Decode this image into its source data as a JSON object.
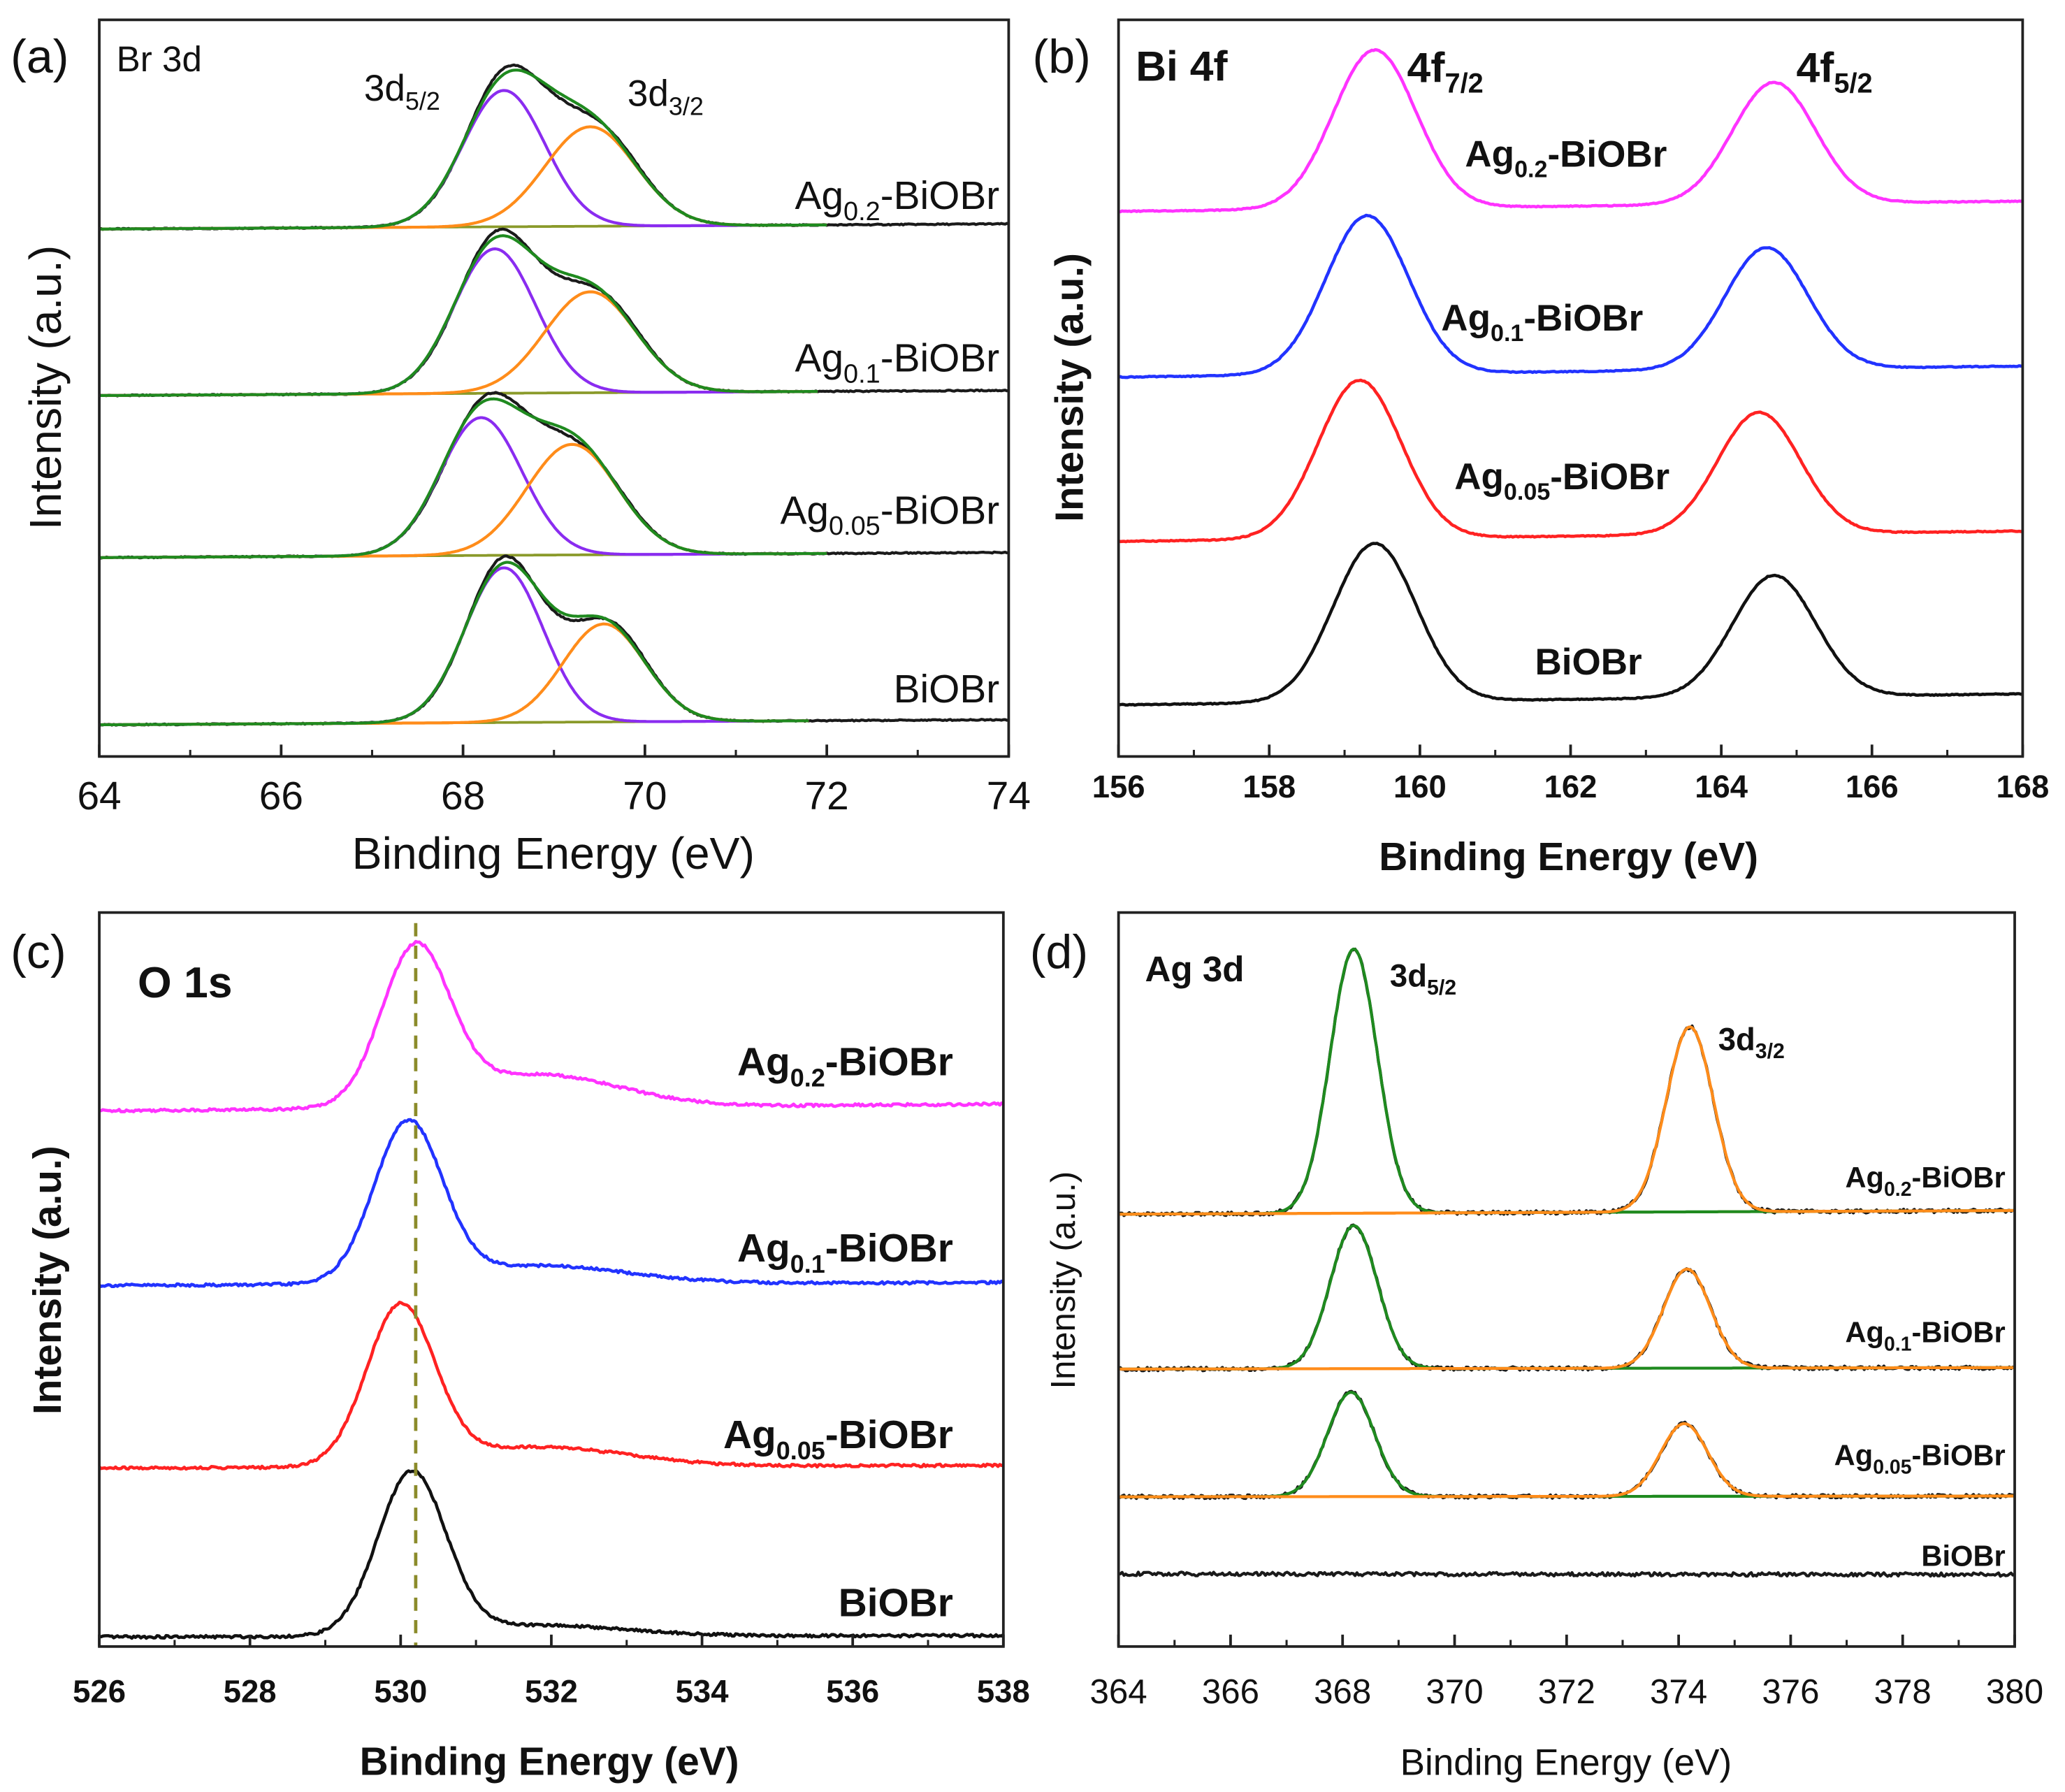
{
  "chart_data": [
    {
      "panel": "(a)",
      "type": "line",
      "title": "Br 3d",
      "xlabel": "Binding Energy (eV)",
      "ylabel": "Intensity (a.u.)",
      "xlim": [
        64,
        74
      ],
      "ylim": [
        0,
        100
      ],
      "xticks": [
        64,
        66,
        68,
        70,
        72,
        74
      ],
      "xtick_labels": [
        "64",
        "66",
        "68",
        "70",
        "72",
        "74"
      ],
      "peak_labels": [
        {
          "main": "3d",
          "sub": "5/2"
        },
        {
          "main": "3d",
          "sub": "3/2"
        }
      ],
      "colors": {
        "data": "#1a1a1a",
        "envelope": "#1f8a1f",
        "background": "#8a9a2a",
        "comp1": "#8a2cf0",
        "comp2": "#ff8c1a"
      },
      "series": [
        {
          "name": "Ag0.2-BiOBr",
          "label": {
            "main": "Ag",
            "sub": "0.2",
            "suffix": "-BiOBr"
          },
          "baseline": [
            71.6,
            72.3
          ],
          "fit_range": [
            64,
            72
          ],
          "components": [
            {
              "center": 68.45,
              "amplitude": 18.5,
              "sigma": 0.45
            },
            {
              "center": 69.4,
              "amplitude": 13.5,
              "sigma": 0.5
            }
          ]
        },
        {
          "name": "Ag0.1-BiOBr",
          "label": {
            "main": "Ag",
            "sub": "0.1",
            "suffix": "-BiOBr"
          },
          "baseline": [
            49.0,
            49.7
          ],
          "fit_range": [
            64,
            71.9
          ],
          "components": [
            {
              "center": 68.35,
              "amplitude": 19.6,
              "sigma": 0.45
            },
            {
              "center": 69.4,
              "amplitude": 13.7,
              "sigma": 0.5
            }
          ]
        },
        {
          "name": "Ag0.05-BiOBr",
          "label": {
            "main": "Ag",
            "sub": "0.05",
            "suffix": "-BiOBr"
          },
          "baseline": [
            27.0,
            27.7
          ],
          "fit_range": [
            64,
            72
          ],
          "components": [
            {
              "center": 68.2,
              "amplitude": 18.7,
              "sigma": 0.45
            },
            {
              "center": 69.2,
              "amplitude": 15.0,
              "sigma": 0.5
            }
          ]
        },
        {
          "name": "BiOBr",
          "label": {
            "main": "BiOBr",
            "sub": "",
            "suffix": ""
          },
          "baseline": [
            4.3,
            5.0
          ],
          "fit_range": [
            64,
            71.8
          ],
          "components": [
            {
              "center": 68.45,
              "amplitude": 21.0,
              "sigma": 0.43
            },
            {
              "center": 69.55,
              "amplitude": 13.3,
              "sigma": 0.45
            }
          ]
        }
      ]
    },
    {
      "panel": "(b)",
      "type": "line",
      "title": "Bi 4f",
      "xlabel": "Binding Energy (eV)",
      "ylabel": "Intensity (a.u.)",
      "xlim": [
        156,
        168
      ],
      "ylim": [
        0,
        100
      ],
      "xticks": [
        156,
        158,
        160,
        162,
        164,
        166,
        168
      ],
      "xtick_labels": [
        "156",
        "158",
        "160",
        "162",
        "164",
        "166",
        "168"
      ],
      "peak_labels": [
        {
          "main": "4f",
          "sub": "7/2"
        },
        {
          "main": "4f",
          "sub": "5/2"
        }
      ],
      "series": [
        {
          "name": "Ag0.2-BiOBr",
          "color": "#ff33ff",
          "label": {
            "main": "Ag",
            "sub": "0.2",
            "suffix": "-BiOBr"
          },
          "baseline": [
            74.0,
            75.4
          ],
          "components": [
            {
              "center": 159.4,
              "amplitude": 21.5,
              "sigma": 0.55
            },
            {
              "center": 164.7,
              "amplitude": 16.5,
              "sigma": 0.55
            }
          ]
        },
        {
          "name": "Ag0.1-BiOBr",
          "color": "#2233ff",
          "label": {
            "main": "Ag",
            "sub": "0.1",
            "suffix": "-BiOBr"
          },
          "baseline": [
            51.5,
            53.0
          ],
          "components": [
            {
              "center": 159.3,
              "amplitude": 21.5,
              "sigma": 0.55
            },
            {
              "center": 164.6,
              "amplitude": 16.5,
              "sigma": 0.55
            }
          ]
        },
        {
          "name": "Ag0.05-BiOBr",
          "color": "#ff2222",
          "label": {
            "main": "Ag",
            "sub": "0.05",
            "suffix": "-BiOBr"
          },
          "baseline": [
            29.2,
            30.6
          ],
          "components": [
            {
              "center": 159.2,
              "amplitude": 21.5,
              "sigma": 0.55
            },
            {
              "center": 164.5,
              "amplitude": 16.5,
              "sigma": 0.55
            }
          ]
        },
        {
          "name": "BiOBr",
          "color": "#111111",
          "label": {
            "main": "BiOBr",
            "sub": "",
            "suffix": ""
          },
          "baseline": [
            7.0,
            8.5
          ],
          "components": [
            {
              "center": 159.4,
              "amplitude": 21.5,
              "sigma": 0.55
            },
            {
              "center": 164.7,
              "amplitude": 16.5,
              "sigma": 0.55
            }
          ]
        }
      ]
    },
    {
      "panel": "(c)",
      "type": "line",
      "title": "O 1s",
      "xlabel": "Binding Energy (eV)",
      "ylabel": "Intensity (a.u.)",
      "xlim": [
        526,
        538
      ],
      "ylim": [
        0,
        100
      ],
      "xticks": [
        526,
        528,
        530,
        532,
        534,
        536,
        538
      ],
      "xtick_labels": [
        "526",
        "528",
        "530",
        "532",
        "534",
        "536",
        "538"
      ],
      "reference_line": {
        "x": 530.2,
        "color": "#8b8b2a",
        "style": "dashed"
      },
      "series": [
        {
          "name": "Ag0.2-BiOBr",
          "color": "#ff33ff",
          "label": {
            "main": "Ag",
            "sub": "0.2",
            "suffix": "-BiOBr"
          },
          "baseline": [
            73.0,
            73.9
          ],
          "components": [
            {
              "center": 530.2,
              "amplitude": 21.0,
              "sigma": 0.45
            },
            {
              "center": 531.8,
              "amplitude": 4.5,
              "sigma": 1.1
            }
          ]
        },
        {
          "name": "Ag0.1-BiOBr",
          "color": "#2233ff",
          "label": {
            "main": "Ag",
            "sub": "0.1",
            "suffix": "-BiOBr"
          },
          "baseline": [
            49.2,
            49.6
          ],
          "components": [
            {
              "center": 530.1,
              "amplitude": 21.5,
              "sigma": 0.45
            },
            {
              "center": 531.8,
              "amplitude": 2.5,
              "sigma": 1.2
            }
          ]
        },
        {
          "name": "Ag0.05-BiOBr",
          "color": "#ff2222",
          "label": {
            "main": "Ag",
            "sub": "0.05",
            "suffix": "-BiOBr"
          },
          "baseline": [
            24.3,
            24.7
          ],
          "components": [
            {
              "center": 530.0,
              "amplitude": 21.5,
              "sigma": 0.45
            },
            {
              "center": 531.8,
              "amplitude": 2.7,
              "sigma": 1.2
            }
          ]
        },
        {
          "name": "BiOBr",
          "color": "#111111",
          "label": {
            "main": "BiOBr",
            "sub": "",
            "suffix": ""
          },
          "baseline": [
            1.3,
            1.5
          ],
          "components": [
            {
              "center": 530.15,
              "amplitude": 22.0,
              "sigma": 0.45
            },
            {
              "center": 531.8,
              "amplitude": 1.5,
              "sigma": 1.2
            }
          ]
        }
      ]
    },
    {
      "panel": "(d)",
      "type": "line",
      "title": "Ag 3d",
      "xlabel": "Binding Energy (eV)",
      "ylabel": "Intensity (a.u.)",
      "xlim": [
        364,
        380
      ],
      "ylim": [
        0,
        100
      ],
      "xticks": [
        364,
        366,
        368,
        370,
        372,
        374,
        376,
        378,
        380
      ],
      "xtick_labels": [
        "364",
        "366",
        "368",
        "370",
        "372",
        "374",
        "376",
        "378",
        "380"
      ],
      "peak_labels": [
        {
          "main": "3d",
          "sub": "5/2"
        },
        {
          "main": "3d",
          "sub": "3/2"
        }
      ],
      "colors": {
        "data": "#1a1a1a",
        "comp1": "#1f8a1f",
        "comp2": "#ff8c1a"
      },
      "series": [
        {
          "name": "Ag0.2-BiOBr",
          "label": {
            "main": "Ag",
            "sub": "0.2",
            "suffix": "-BiOBr"
          },
          "baseline": [
            58.9,
            59.4
          ],
          "fit_range": [
            364,
            380
          ],
          "components": [
            {
              "center": 368.2,
              "amplitude": 36.0,
              "sigma": 0.42
            },
            {
              "center": 374.2,
              "amplitude": 25.2,
              "sigma": 0.42
            }
          ]
        },
        {
          "name": "Ag0.1-BiOBr",
          "label": {
            "main": "Ag",
            "sub": "0.1",
            "suffix": "-BiOBr"
          },
          "baseline": [
            37.8,
            38.0
          ],
          "fit_range": [
            364,
            380
          ],
          "components": [
            {
              "center": 368.2,
              "amplitude": 19.5,
              "sigma": 0.42
            },
            {
              "center": 374.15,
              "amplitude": 13.5,
              "sigma": 0.42
            }
          ]
        },
        {
          "name": "Ag0.05-BiOBr",
          "label": {
            "main": "Ag",
            "sub": "0.05",
            "suffix": "-BiOBr"
          },
          "baseline": [
            20.4,
            20.5
          ],
          "fit_range": [
            364,
            380
          ],
          "components": [
            {
              "center": 368.15,
              "amplitude": 14.2,
              "sigma": 0.42
            },
            {
              "center": 374.1,
              "amplitude": 9.9,
              "sigma": 0.42
            }
          ]
        },
        {
          "name": "BiOBr",
          "label": {
            "main": "BiOBr",
            "sub": "",
            "suffix": ""
          },
          "baseline": [
            9.9,
            9.8
          ],
          "fit_range": null,
          "components": []
        }
      ]
    }
  ]
}
